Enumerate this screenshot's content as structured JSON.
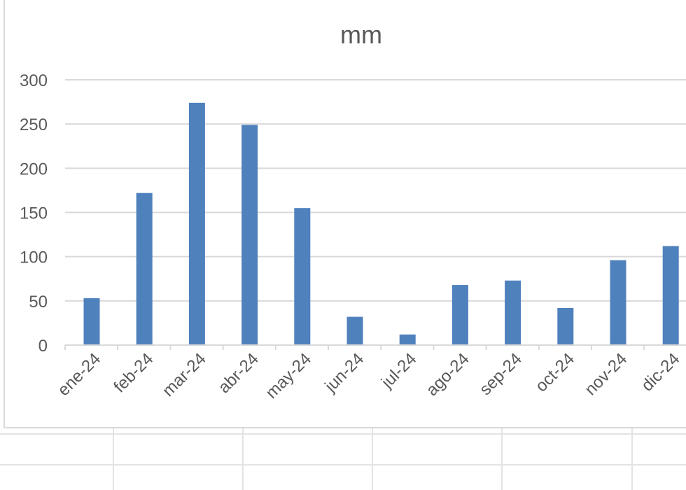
{
  "chart_data": {
    "type": "bar",
    "title": "mm",
    "xlabel": "",
    "ylabel": "",
    "categories": [
      "ene-24",
      "feb-24",
      "mar-24",
      "abr-24",
      "may-24",
      "jun-24",
      "jul-24",
      "ago-24",
      "sep-24",
      "oct-24",
      "nov-24",
      "dic-24"
    ],
    "values": [
      53,
      172,
      274,
      249,
      155,
      32,
      12,
      68,
      73,
      42,
      96,
      112
    ],
    "ylim": [
      0,
      300
    ],
    "yticks": [
      0,
      50,
      100,
      150,
      200,
      250,
      300
    ],
    "grid": true,
    "legend": "none",
    "bar_color": "#4F81BD",
    "grid_color": "#d9d9d9",
    "text_color": "#595959"
  }
}
